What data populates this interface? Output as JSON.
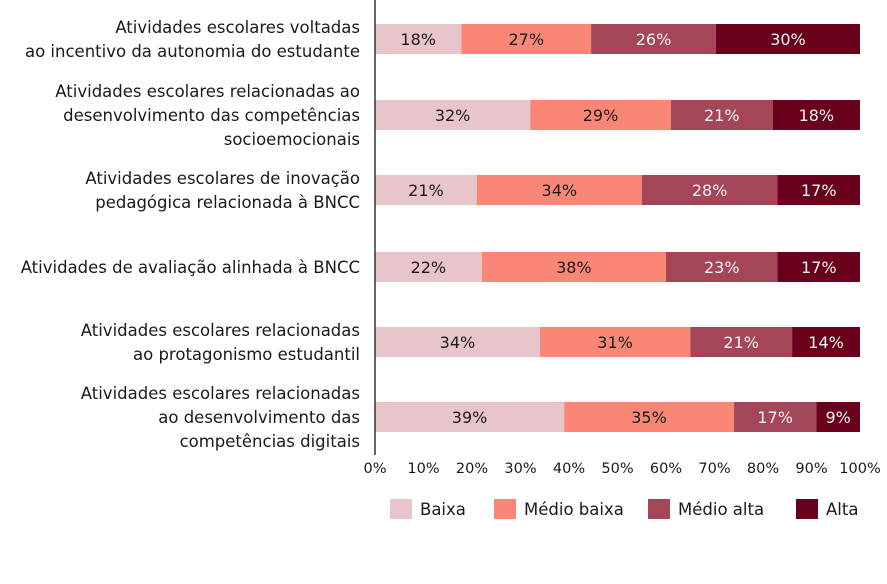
{
  "chart_data": {
    "type": "bar",
    "orientation": "horizontal",
    "stacked": true,
    "categories": [
      [
        "Atividades escolares voltadas",
        "ao incentivo da autonomia do estudante"
      ],
      [
        "Atividades escolares relacionadas ao",
        "desenvolvimento das competências",
        "socioemocionais"
      ],
      [
        "Atividades escolares de inovação",
        "pedagógica relacionada à BNCC"
      ],
      [
        "Atividades de avaliação alinhada à BNCC"
      ],
      [
        "Atividades escolares relacionadas",
        "ao protagonismo estudantil"
      ],
      [
        "Atividades escolares relacionadas",
        "ao desenvolvimento das",
        "competências digitais"
      ]
    ],
    "series": [
      {
        "name": "Baixa",
        "color": "#e8c4cb",
        "label_color": "#1a1a1a",
        "values": [
          18,
          32,
          21,
          22,
          34,
          39
        ]
      },
      {
        "name": "Médio baixa",
        "color": "#fa8775",
        "label_color": "#1a1a1a",
        "values": [
          27,
          29,
          34,
          38,
          31,
          35
        ]
      },
      {
        "name": "Médio alta",
        "color": "#a44558",
        "label_color": "#f2f2f2",
        "values": [
          26,
          21,
          28,
          23,
          21,
          17
        ]
      },
      {
        "name": "Alta",
        "color": "#69001c",
        "label_color": "#f2f2f2",
        "values": [
          30,
          18,
          17,
          17,
          14,
          9
        ]
      }
    ],
    "xlim": [
      0,
      100
    ],
    "xticks": [
      "0%",
      "10%",
      "20%",
      "30%",
      "40%",
      "50%",
      "60%",
      "70%",
      "80%",
      "90%",
      "100%"
    ],
    "value_suffix": "%",
    "grid": false,
    "legend": "bottom-right"
  }
}
